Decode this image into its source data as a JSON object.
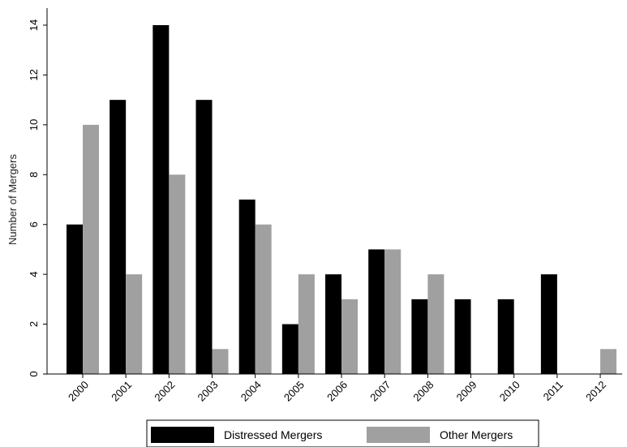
{
  "chart_data": {
    "type": "bar",
    "title": "",
    "xlabel": "",
    "ylabel": "Number of Mergers",
    "categories": [
      "2000",
      "2001",
      "2002",
      "2003",
      "2004",
      "2005",
      "2006",
      "2007",
      "2008",
      "2009",
      "2010",
      "2011",
      "2012"
    ],
    "series": [
      {
        "name": "Distressed Mergers",
        "color": "#000000",
        "values": [
          6,
          11,
          14,
          11,
          7,
          2,
          4,
          5,
          3,
          3,
          3,
          4,
          0
        ]
      },
      {
        "name": "Other Mergers",
        "color": "#a0a0a0",
        "values": [
          10,
          4,
          8,
          1,
          6,
          4,
          3,
          5,
          4,
          0,
          0,
          0,
          1
        ]
      }
    ],
    "ylim": [
      0,
      14
    ],
    "yticks": [
      0,
      2,
      4,
      6,
      8,
      10,
      12,
      14
    ],
    "grid": false,
    "legend_position": "bottom"
  }
}
